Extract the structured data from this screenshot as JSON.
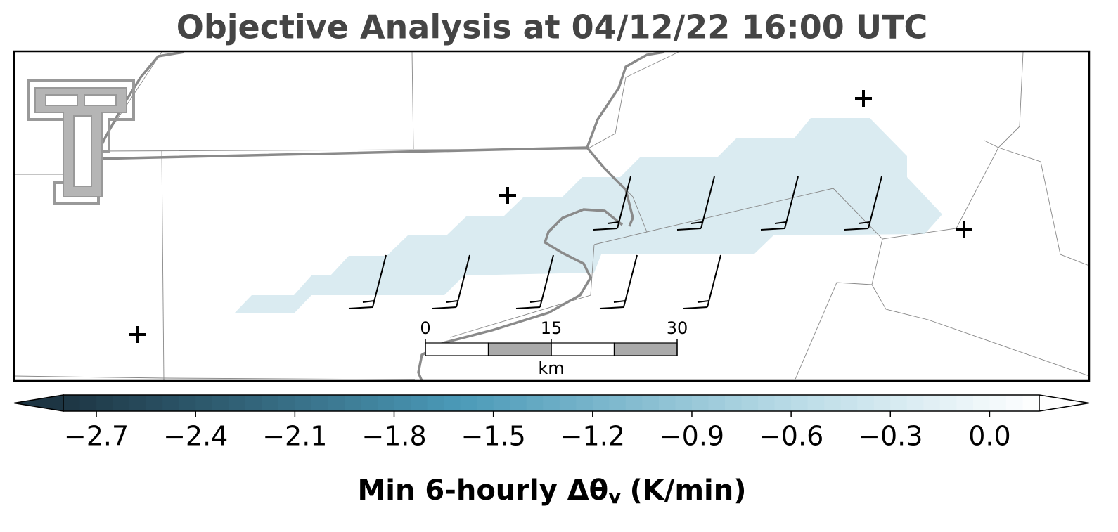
{
  "title": "Objective Analysis at 04/12/22 16:00 UTC",
  "colorbar": {
    "clim": [
      -2.8,
      0.15
    ],
    "step": 0.05,
    "cmap": [
      {
        "value": -2.8,
        "color": "#1d3543"
      },
      {
        "value": -1.6,
        "color": "#4b9ab8"
      },
      {
        "value": -0.6,
        "color": "#b9dbe6"
      },
      {
        "value": 0.15,
        "color": "#ffffff"
      }
    ],
    "ticks": [
      {
        "value": -2.7,
        "label": "−2.7"
      },
      {
        "value": -2.4,
        "label": "−2.4"
      },
      {
        "value": -2.1,
        "label": "−2.1"
      },
      {
        "value": -1.8,
        "label": "−1.8"
      },
      {
        "value": -1.5,
        "label": "−1.5"
      },
      {
        "value": -1.2,
        "label": "−1.2"
      },
      {
        "value": -0.9,
        "label": "−0.9"
      },
      {
        "value": -0.6,
        "label": "−0.6"
      },
      {
        "value": -0.3,
        "label": "−0.3"
      },
      {
        "value": 0,
        "label": "0.0"
      }
    ],
    "label": {
      "text": "Min 6-hourly Δθ",
      "subscript": "v",
      "suffix": "(K/min)"
    }
  },
  "scale_bar": {
    "ticks": [
      0,
      15,
      30
    ],
    "unit": "km"
  }
}
